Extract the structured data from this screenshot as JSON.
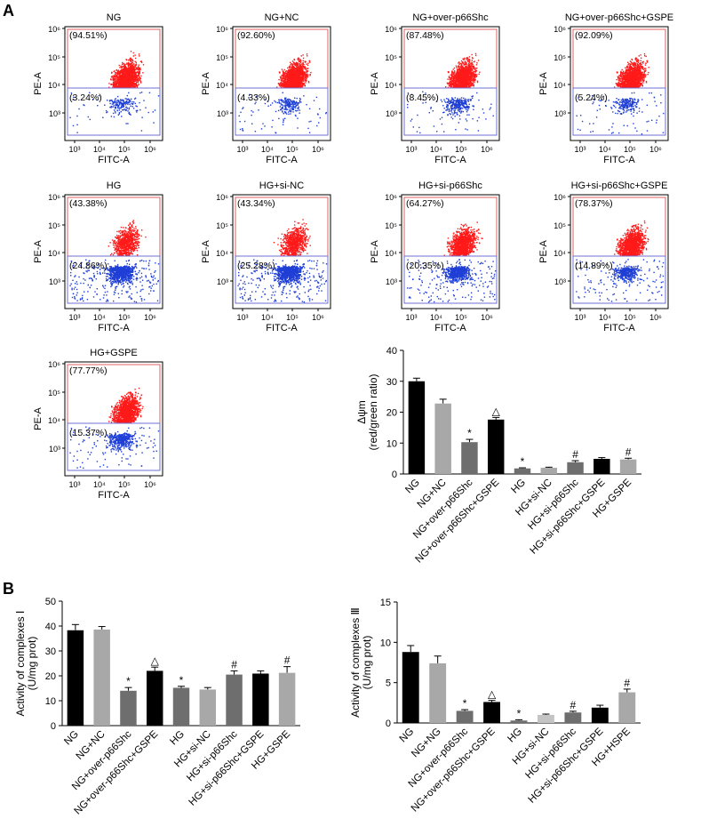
{
  "panel_labels": {
    "a": "A",
    "b": "B"
  },
  "colors": {
    "red_dot": "#ff1a1a",
    "blue_dot": "#1f3fd6",
    "gate_red": "#e06060",
    "gate_blue": "#6f6fd6",
    "bar_black": "#000000",
    "bar_light": "#a8a8a8",
    "bar_mid": "#6e6e6e",
    "bar_lighter": "#c4c4c4"
  },
  "chart_data": [
    {
      "type": "scatter",
      "subtype": "flow_cytometry_dot_plots",
      "xlabel": "FITC-A",
      "ylabel": "PE-A",
      "x_ticks": [
        "10³",
        "10⁴",
        "10⁵",
        "10⁶"
      ],
      "y_ticks": [
        "10⁶",
        "10⁵",
        "10⁴",
        "10³"
      ],
      "plots": [
        {
          "title": "NG",
          "upper_gate": "(94.51%)",
          "lower_gate": "(3.24%)",
          "upper_fraction": 0.9451
        },
        {
          "title": "NG+NC",
          "upper_gate": "(92.60%)",
          "lower_gate": "(4.33%)",
          "upper_fraction": 0.926
        },
        {
          "title": "NG+over-p66Shc",
          "upper_gate": "(87.48%)",
          "lower_gate": "(8.45%)",
          "upper_fraction": 0.8748
        },
        {
          "title": "NG+over-p66Shc+GSPE",
          "upper_gate": "(92.09%)",
          "lower_gate": "(5.24%)",
          "upper_fraction": 0.9209
        },
        {
          "title": "HG",
          "upper_gate": "(43.38%)",
          "lower_gate": "(24.86%)",
          "upper_fraction": 0.4338
        },
        {
          "title": "HG+si-NC",
          "upper_gate": "(43.34%)",
          "lower_gate": "(25.28%)",
          "upper_fraction": 0.4334
        },
        {
          "title": "HG+si-p66Shc",
          "upper_gate": "(64.27%)",
          "lower_gate": "(20.35%)",
          "upper_fraction": 0.6427
        },
        {
          "title": "HG+si-p66Shc+GSPE",
          "upper_gate": "(78.37%)",
          "lower_gate": "(14.89%)",
          "upper_fraction": 0.7837
        },
        {
          "title": "HG+GSPE",
          "upper_gate": "(77.77%)",
          "lower_gate": "(15.37%)",
          "upper_fraction": 0.7777
        }
      ]
    },
    {
      "type": "bar",
      "title": "",
      "ylabel_line1": "Δψm",
      "ylabel_line2": "(red/green ratio)",
      "ylim": [
        0,
        40
      ],
      "yticks": [
        0,
        10,
        20,
        30,
        40
      ],
      "categories": [
        "NG",
        "NG+NC",
        "NG+over-p66Shc",
        "NG+over-p66Shc+GSPE",
        "HG",
        "HG+si-NC",
        "HG+si-p66Shc",
        "HG+si-p66Shc+GSPE",
        "HG+GSPE"
      ],
      "values": [
        30.0,
        22.8,
        10.3,
        17.6,
        1.8,
        2.0,
        3.8,
        4.9,
        4.7
      ],
      "errors": [
        1.0,
        1.4,
        0.9,
        0.7,
        0.2,
        0.2,
        0.5,
        0.4,
        0.4
      ],
      "annotations": [
        "",
        "",
        "*",
        "△",
        "*",
        "",
        "#",
        "",
        "#"
      ],
      "bar_colors": [
        "#000000",
        "#a8a8a8",
        "#6e6e6e",
        "#000000",
        "#6e6e6e",
        "#a8a8a8",
        "#6e6e6e",
        "#000000",
        "#a8a8a8"
      ]
    },
    {
      "type": "bar",
      "title": "",
      "ylabel_line1": "Activity of complexes Ⅰ",
      "ylabel_line2": "(U/mg prot)",
      "ylim": [
        0,
        50
      ],
      "yticks": [
        0,
        10,
        20,
        30,
        40,
        50
      ],
      "categories": [
        "NG",
        "NG+NC",
        "NG+over-p66Shc",
        "NG+over-p66Shc+GSPE",
        "HG",
        "HG+si-NC",
        "HG+si-p66Shc",
        "HG+si-p66Shc+GSPE",
        "HG+GSPE"
      ],
      "values": [
        38.3,
        38.6,
        14.0,
        22.0,
        15.2,
        14.5,
        20.5,
        20.9,
        21.2
      ],
      "errors": [
        2.3,
        1.2,
        1.3,
        1.5,
        0.6,
        0.8,
        1.5,
        1.1,
        2.5
      ],
      "annotations": [
        "",
        "",
        "*",
        "△",
        "*",
        "",
        "#",
        "",
        "#"
      ],
      "bar_colors": [
        "#000000",
        "#a8a8a8",
        "#6e6e6e",
        "#000000",
        "#6e6e6e",
        "#a8a8a8",
        "#6e6e6e",
        "#000000",
        "#a8a8a8"
      ]
    },
    {
      "type": "bar",
      "title": "",
      "ylabel_line1": "Activity of complexes  Ⅲ",
      "ylabel_line2": "(U/mg prot)",
      "ylim": [
        0,
        15
      ],
      "yticks": [
        0,
        5,
        10,
        15
      ],
      "categories": [
        "NG",
        "NG+NG",
        "NG+over-p66Shc",
        "NG+over-p66Shc+GSPE",
        "HG",
        "HG+si-NC",
        "HG+si-p66Shc",
        "HG+si-p66Shc+GSPE",
        "HG+HSPE"
      ],
      "values": [
        8.8,
        7.4,
        1.5,
        2.6,
        0.3,
        1.0,
        1.3,
        1.9,
        3.8
      ],
      "errors": [
        0.8,
        0.9,
        0.15,
        0.2,
        0.1,
        0.1,
        0.15,
        0.3,
        0.4
      ],
      "annotations": [
        "",
        "",
        "*",
        "△",
        "*",
        "",
        "#",
        "",
        "#"
      ],
      "bar_colors": [
        "#000000",
        "#a8a8a8",
        "#6e6e6e",
        "#000000",
        "#6e6e6e",
        "#c4c4c4",
        "#6e6e6e",
        "#000000",
        "#a8a8a8"
      ]
    }
  ]
}
